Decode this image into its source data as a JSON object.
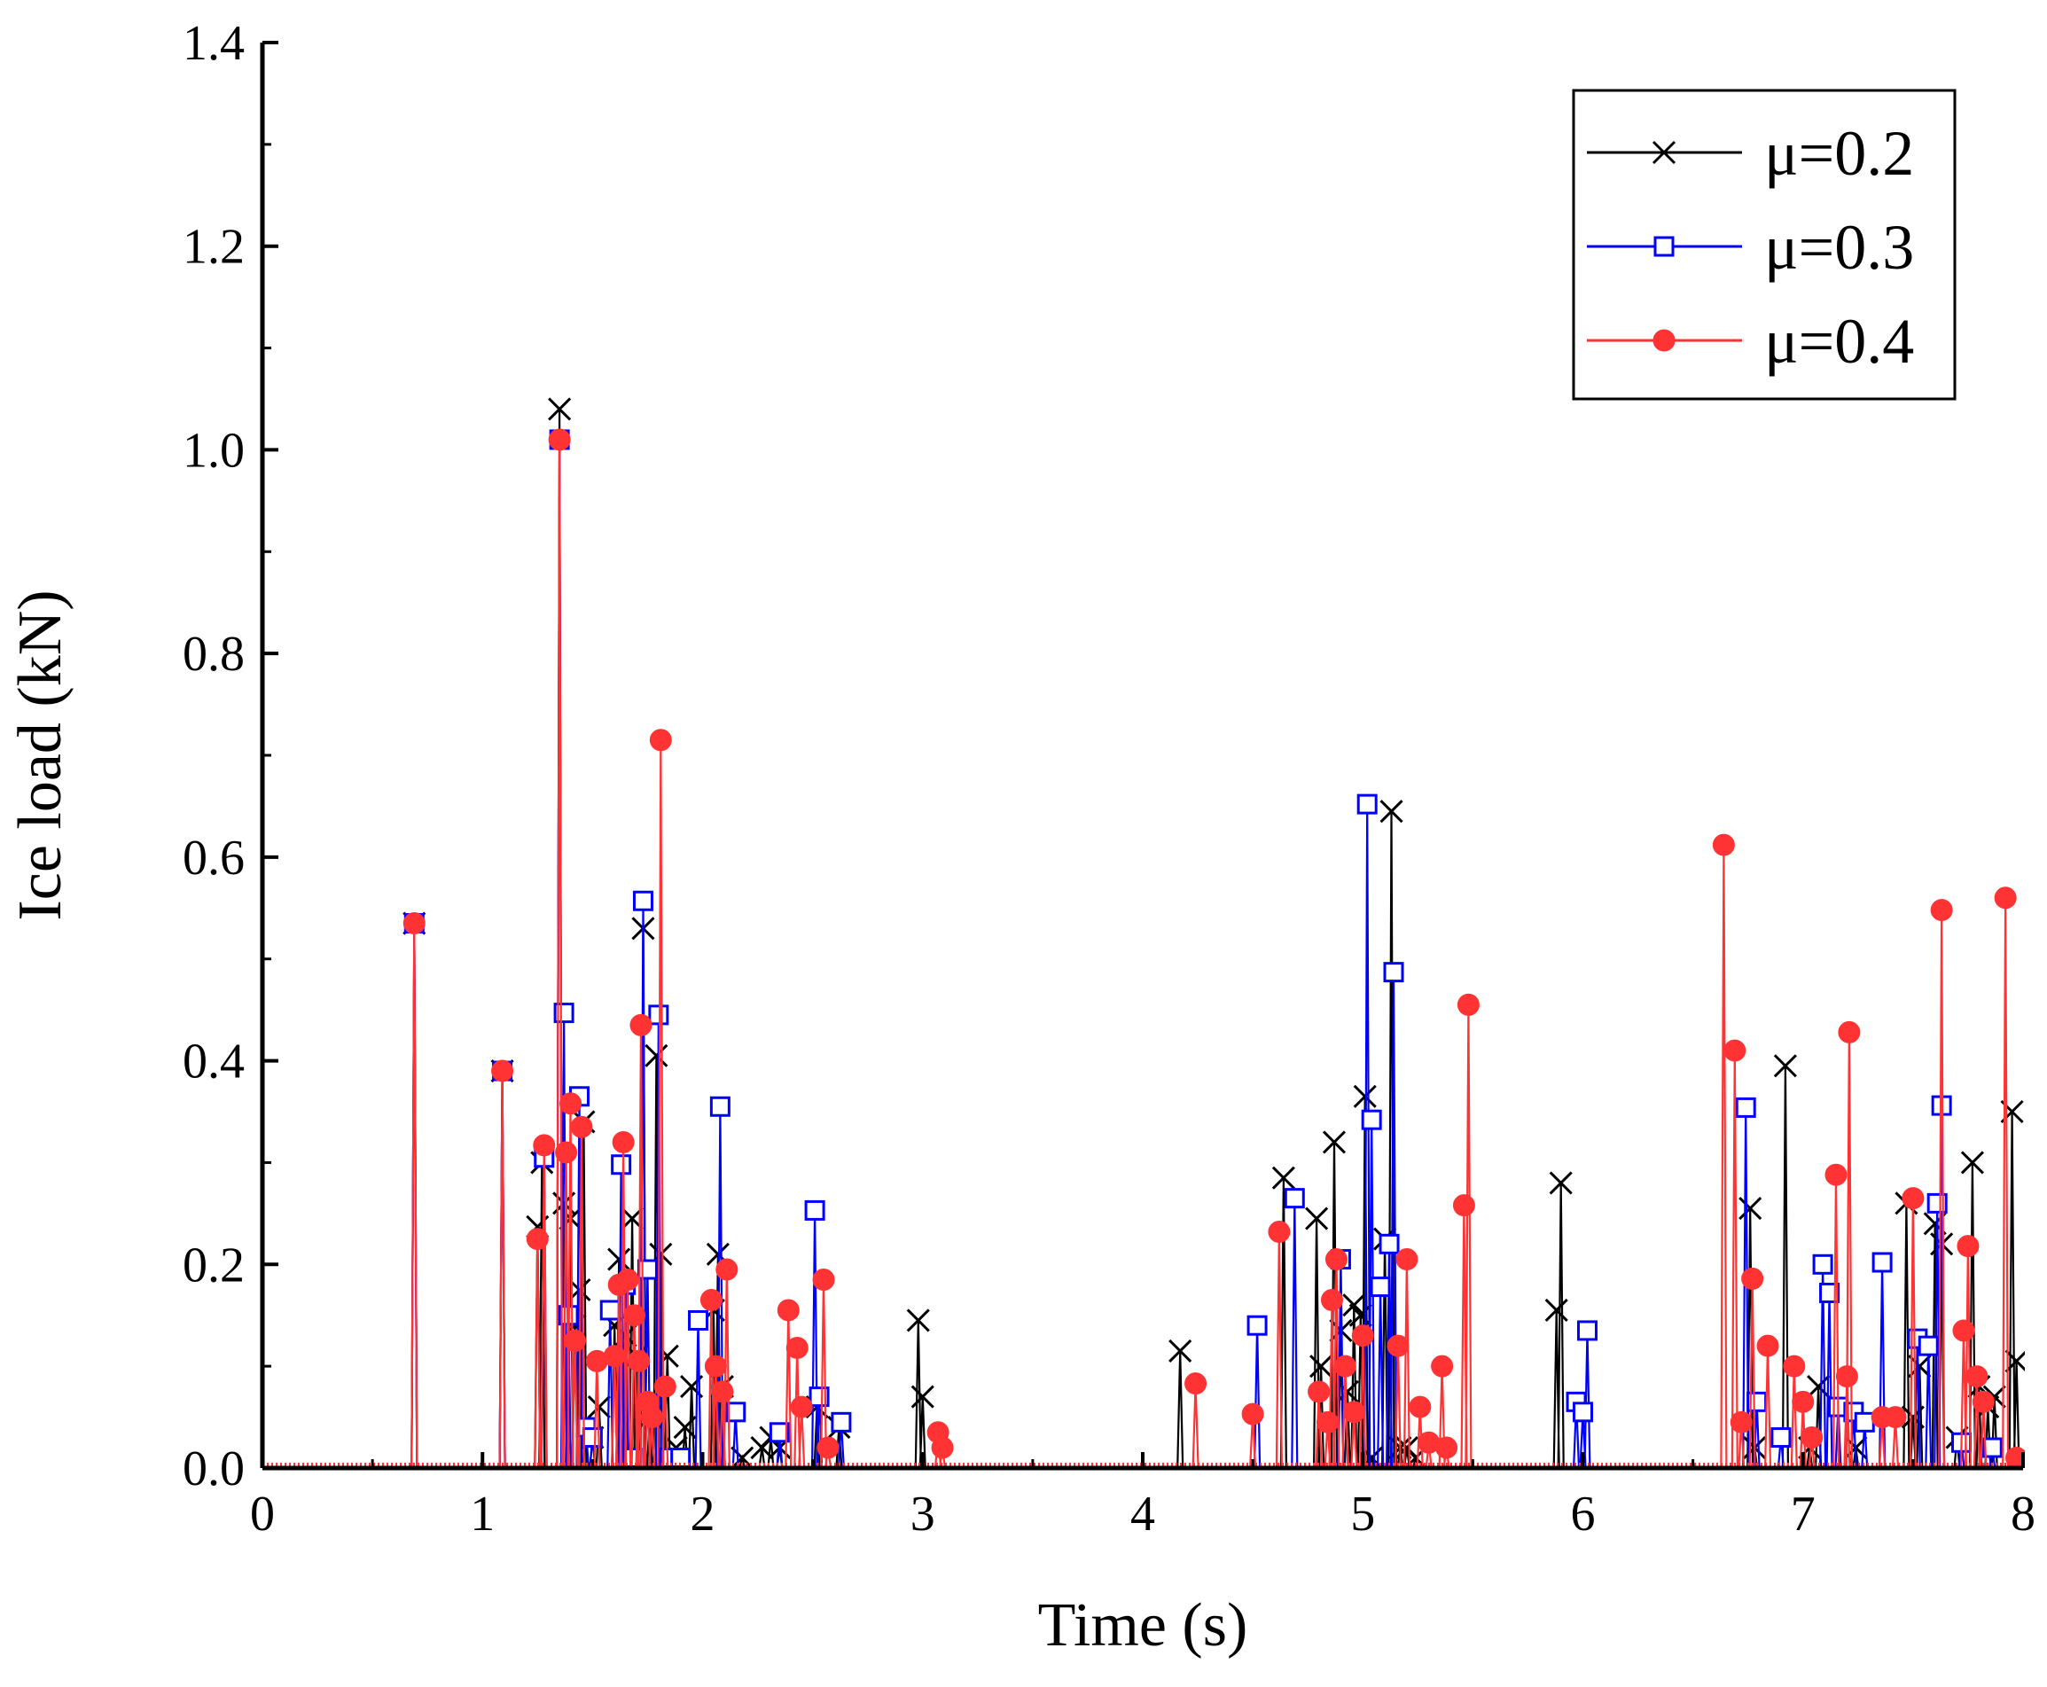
{
  "chart_data": {
    "type": "line",
    "xlabel": "Time (s)",
    "ylabel": "Ice load (kN)",
    "xlim": [
      0,
      8
    ],
    "ylim": [
      0,
      1.4
    ],
    "x_ticks": [
      0,
      1,
      2,
      3,
      4,
      5,
      6,
      7,
      8
    ],
    "x_tick_labels": [
      "0",
      "1",
      "2",
      "3",
      "4",
      "5",
      "6",
      "7",
      "8"
    ],
    "y_ticks": [
      0,
      0.2,
      0.4,
      0.6,
      0.8,
      1.0,
      1.2,
      1.4
    ],
    "y_tick_labels": [
      "0.0",
      "0.2",
      "0.4",
      "0.6",
      "0.8",
      "1.0",
      "1.2",
      "1.4"
    ],
    "legend": {
      "position": "top-right"
    },
    "series": [
      {
        "name": "μ=0.2",
        "color": "#000000",
        "marker": "x",
        "peaks": [
          [
            0.69,
            0.535
          ],
          [
            1.09,
            0.39
          ],
          [
            1.25,
            0.237
          ],
          [
            1.27,
            0.3
          ],
          [
            1.35,
            1.04
          ],
          [
            1.37,
            0.26
          ],
          [
            1.4,
            0.245
          ],
          [
            1.42,
            0.14
          ],
          [
            1.44,
            0.175
          ],
          [
            1.46,
            0.34
          ],
          [
            1.5,
            0.03
          ],
          [
            1.53,
            0.06
          ],
          [
            1.6,
            0.14
          ],
          [
            1.62,
            0.205
          ],
          [
            1.65,
            0.13
          ],
          [
            1.68,
            0.245
          ],
          [
            1.7,
            0.11
          ],
          [
            1.73,
            0.53
          ],
          [
            1.76,
            0.05
          ],
          [
            1.79,
            0.405
          ],
          [
            1.81,
            0.21
          ],
          [
            1.84,
            0.11
          ],
          [
            1.88,
            0.02
          ],
          [
            1.92,
            0.04
          ],
          [
            1.95,
            0.08
          ],
          [
            2.05,
            0.155
          ],
          [
            2.07,
            0.21
          ],
          [
            2.09,
            0.08
          ],
          [
            2.18,
            0.01
          ],
          [
            2.27,
            0.02
          ],
          [
            2.31,
            0.03
          ],
          [
            2.35,
            0.02
          ],
          [
            2.52,
            0.06
          ],
          [
            2.62,
            0.04
          ],
          [
            2.98,
            0.145
          ],
          [
            3.0,
            0.07
          ],
          [
            4.17,
            0.115
          ],
          [
            4.64,
            0.285
          ],
          [
            4.79,
            0.245
          ],
          [
            4.81,
            0.1
          ],
          [
            4.87,
            0.32
          ],
          [
            4.9,
            0.135
          ],
          [
            4.93,
            0.075
          ],
          [
            4.96,
            0.16
          ],
          [
            4.99,
            0.15
          ],
          [
            5.01,
            0.365
          ],
          [
            5.04,
            0.01
          ],
          [
            5.1,
            0.225
          ],
          [
            5.13,
            0.645
          ],
          [
            5.17,
            0.02
          ],
          [
            5.2,
            0.02
          ],
          [
            5.24,
            0.01
          ],
          [
            5.88,
            0.155
          ],
          [
            5.9,
            0.28
          ],
          [
            6.76,
            0.255
          ],
          [
            6.78,
            0.02
          ],
          [
            6.92,
            0.395
          ],
          [
            7.03,
            0.02
          ],
          [
            7.07,
            0.08
          ],
          [
            7.24,
            0.02
          ],
          [
            7.47,
            0.26
          ],
          [
            7.5,
            0.05
          ],
          [
            7.53,
            0.1
          ],
          [
            7.6,
            0.24
          ],
          [
            7.63,
            0.22
          ],
          [
            7.7,
            0.03
          ],
          [
            7.77,
            0.3
          ],
          [
            7.8,
            0.08
          ],
          [
            7.84,
            0.06
          ],
          [
            7.87,
            0.07
          ],
          [
            7.95,
            0.35
          ],
          [
            7.97,
            0.105
          ]
        ]
      },
      {
        "name": "μ=0.3",
        "color": "#0000ff",
        "marker": "square",
        "peaks": [
          [
            0.69,
            0.535
          ],
          [
            1.09,
            0.39
          ],
          [
            1.28,
            0.305
          ],
          [
            1.35,
            1.01
          ],
          [
            1.37,
            0.447
          ],
          [
            1.39,
            0.15
          ],
          [
            1.44,
            0.365
          ],
          [
            1.47,
            0.04
          ],
          [
            1.5,
            0.03
          ],
          [
            1.58,
            0.155
          ],
          [
            1.63,
            0.298
          ],
          [
            1.65,
            0.18
          ],
          [
            1.68,
            0.01
          ],
          [
            1.73,
            0.557
          ],
          [
            1.75,
            0.195
          ],
          [
            1.8,
            0.445
          ],
          [
            1.85,
            0.01
          ],
          [
            1.9,
            0.01
          ],
          [
            1.98,
            0.145
          ],
          [
            2.08,
            0.355
          ],
          [
            2.15,
            0.055
          ],
          [
            2.35,
            0.035
          ],
          [
            2.51,
            0.253
          ],
          [
            2.53,
            0.07
          ],
          [
            2.63,
            0.045
          ],
          [
            4.52,
            0.14
          ],
          [
            4.69,
            0.265
          ],
          [
            4.9,
            0.205
          ],
          [
            5.02,
            0.652
          ],
          [
            5.04,
            0.342
          ],
          [
            5.08,
            0.178
          ],
          [
            5.12,
            0.22
          ],
          [
            5.14,
            0.487
          ],
          [
            5.97,
            0.065
          ],
          [
            6.0,
            0.055
          ],
          [
            6.02,
            0.135
          ],
          [
            6.74,
            0.354
          ],
          [
            6.79,
            0.065
          ],
          [
            6.9,
            0.03
          ],
          [
            7.09,
            0.2
          ],
          [
            7.12,
            0.172
          ],
          [
            7.16,
            0.06
          ],
          [
            7.23,
            0.055
          ],
          [
            7.28,
            0.045
          ],
          [
            7.36,
            0.202
          ],
          [
            7.52,
            0.127
          ],
          [
            7.57,
            0.12
          ],
          [
            7.61,
            0.26
          ],
          [
            7.63,
            0.356
          ],
          [
            7.72,
            0.025
          ],
          [
            7.86,
            0.02
          ]
        ]
      },
      {
        "name": "μ=0.4",
        "color": "#ff3333",
        "marker": "circle",
        "peaks": [
          [
            0.69,
            0.535
          ],
          [
            1.09,
            0.39
          ],
          [
            1.25,
            0.225
          ],
          [
            1.28,
            0.317
          ],
          [
            1.35,
            1.01
          ],
          [
            1.38,
            0.31
          ],
          [
            1.4,
            0.358
          ],
          [
            1.42,
            0.125
          ],
          [
            1.45,
            0.335
          ],
          [
            1.52,
            0.105
          ],
          [
            1.6,
            0.11
          ],
          [
            1.62,
            0.18
          ],
          [
            1.64,
            0.32
          ],
          [
            1.66,
            0.185
          ],
          [
            1.69,
            0.15
          ],
          [
            1.71,
            0.105
          ],
          [
            1.72,
            0.435
          ],
          [
            1.75,
            0.065
          ],
          [
            1.77,
            0.05
          ],
          [
            1.81,
            0.715
          ],
          [
            1.83,
            0.08
          ],
          [
            2.04,
            0.165
          ],
          [
            2.06,
            0.1
          ],
          [
            2.09,
            0.075
          ],
          [
            2.11,
            0.195
          ],
          [
            2.39,
            0.155
          ],
          [
            2.43,
            0.118
          ],
          [
            2.45,
            0.06
          ],
          [
            2.55,
            0.185
          ],
          [
            2.57,
            0.02
          ],
          [
            3.07,
            0.035
          ],
          [
            3.09,
            0.02
          ],
          [
            4.24,
            0.083
          ],
          [
            4.5,
            0.053
          ],
          [
            4.62,
            0.232
          ],
          [
            4.8,
            0.075
          ],
          [
            4.84,
            0.045
          ],
          [
            4.86,
            0.165
          ],
          [
            4.88,
            0.205
          ],
          [
            4.92,
            0.1
          ],
          [
            4.96,
            0.055
          ],
          [
            5.0,
            0.13
          ],
          [
            5.16,
            0.12
          ],
          [
            5.2,
            0.205
          ],
          [
            5.26,
            0.06
          ],
          [
            5.3,
            0.025
          ],
          [
            5.36,
            0.1
          ],
          [
            5.38,
            0.02
          ],
          [
            5.46,
            0.258
          ],
          [
            5.48,
            0.455
          ],
          [
            6.64,
            0.612
          ],
          [
            6.69,
            0.41
          ],
          [
            6.72,
            0.045
          ],
          [
            6.77,
            0.186
          ],
          [
            6.84,
            0.12
          ],
          [
            6.96,
            0.1
          ],
          [
            7.0,
            0.065
          ],
          [
            7.04,
            0.03
          ],
          [
            7.15,
            0.288
          ],
          [
            7.2,
            0.09
          ],
          [
            7.21,
            0.428
          ],
          [
            7.36,
            0.05
          ],
          [
            7.42,
            0.05
          ],
          [
            7.5,
            0.265
          ],
          [
            7.63,
            0.548
          ],
          [
            7.73,
            0.135
          ],
          [
            7.75,
            0.218
          ],
          [
            7.79,
            0.09
          ],
          [
            7.82,
            0.065
          ],
          [
            7.92,
            0.56
          ],
          [
            7.97,
            0.01
          ]
        ]
      }
    ]
  }
}
